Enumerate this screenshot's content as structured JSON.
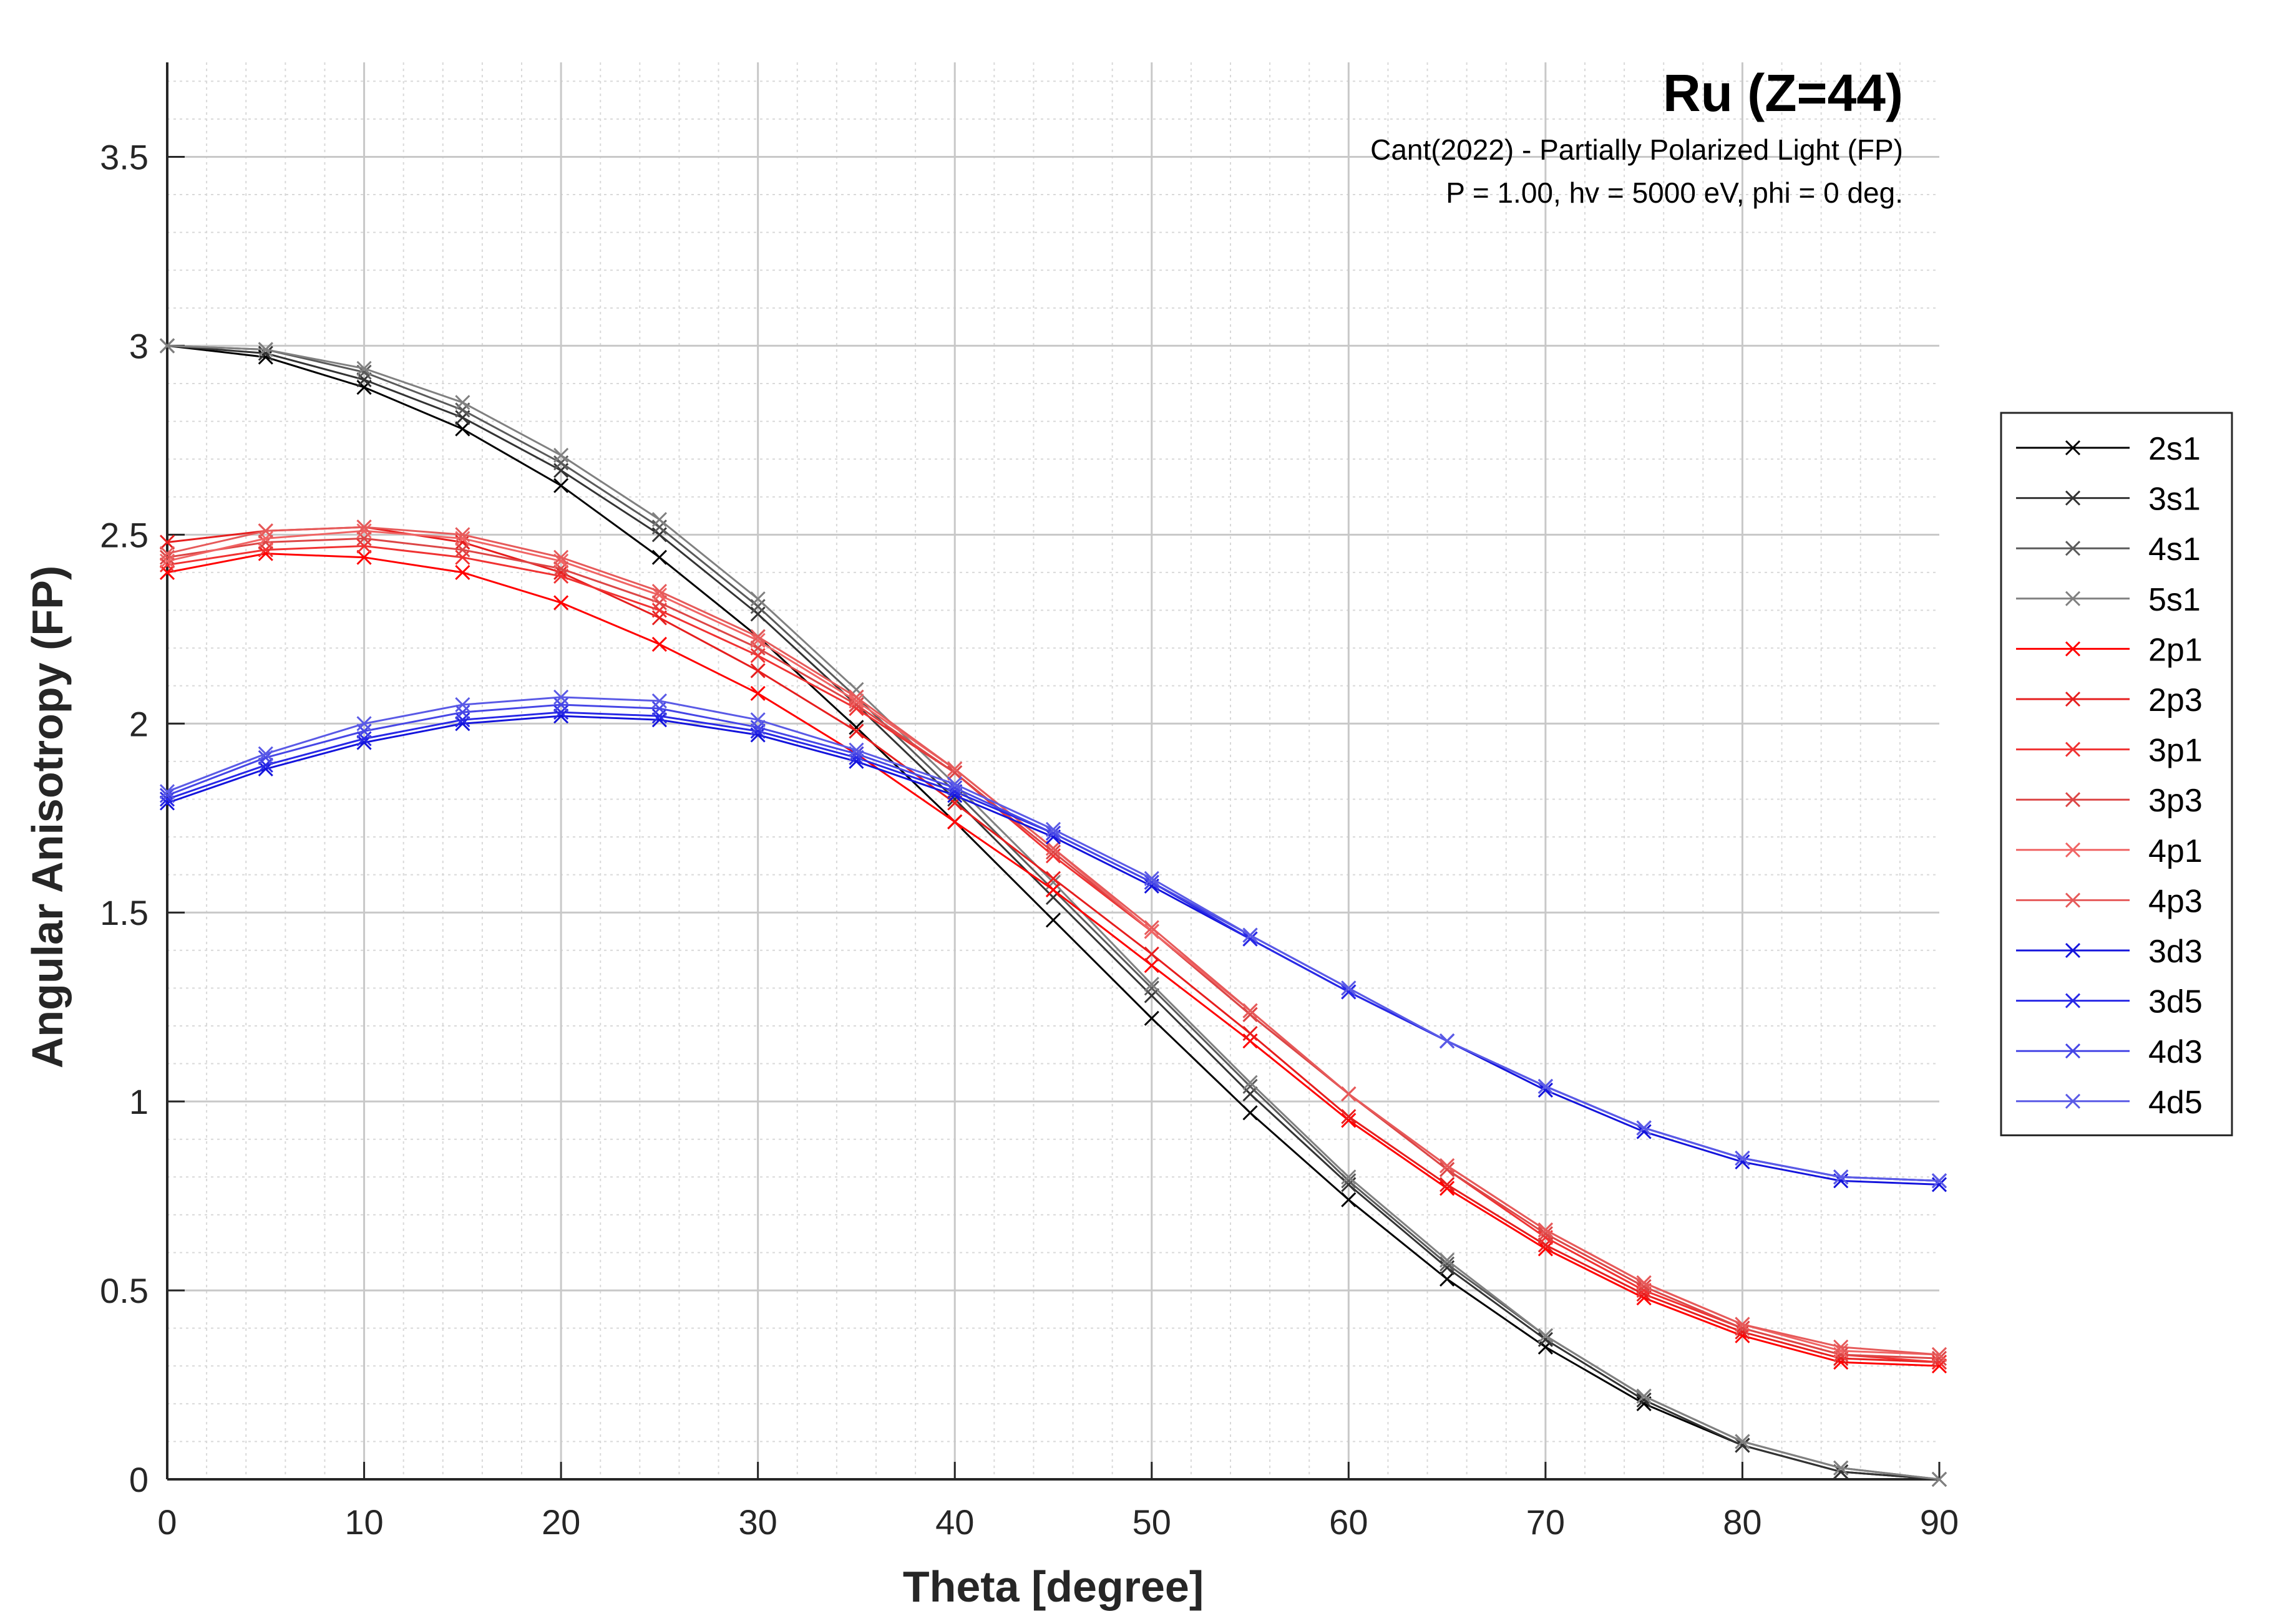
{
  "chart_data": {
    "type": "line",
    "title": "Ru (Z=44)",
    "subtitle_lines": [
      "Cant(2022) - Partially Polarized Light (FP)",
      "P = 1.00, hv = 5000 eV, phi = 0 deg."
    ],
    "xlabel": "Theta [degree]",
    "ylabel": "Angular Anisotropy (FP)",
    "xlim": [
      0,
      90
    ],
    "ylim": [
      0,
      3.75
    ],
    "xticks": [
      0,
      10,
      20,
      30,
      40,
      50,
      60,
      70,
      80,
      90
    ],
    "yticks": [
      0,
      0.5,
      1,
      1.5,
      2,
      2.5,
      3,
      3.5
    ],
    "xtick_labels": [
      "0",
      "10",
      "20",
      "30",
      "40",
      "50",
      "60",
      "70",
      "80",
      "90"
    ],
    "ytick_labels": [
      "0",
      "0.5",
      "1",
      "1.5",
      "2",
      "2.5",
      "3",
      "3.5"
    ],
    "grid": true,
    "minor_grid": true,
    "legend_position": "outside-right",
    "marker": "x",
    "x": [
      0,
      5,
      10,
      15,
      20,
      25,
      30,
      35,
      40,
      45,
      50,
      55,
      60,
      65,
      70,
      75,
      80,
      85,
      90
    ],
    "series": [
      {
        "name": "2s1",
        "color": "#000000",
        "values": [
          3.0,
          2.97,
          2.89,
          2.78,
          2.63,
          2.44,
          2.23,
          1.99,
          1.74,
          1.48,
          1.22,
          0.97,
          0.74,
          0.53,
          0.35,
          0.2,
          0.09,
          0.02,
          0.0
        ]
      },
      {
        "name": "3s1",
        "color": "#333333",
        "values": [
          3.0,
          2.98,
          2.91,
          2.81,
          2.67,
          2.5,
          2.29,
          2.05,
          1.8,
          1.54,
          1.28,
          1.02,
          0.78,
          0.56,
          0.37,
          0.21,
          0.09,
          0.02,
          0.0
        ]
      },
      {
        "name": "4s1",
        "color": "#5a5a5a",
        "values": [
          3.0,
          2.99,
          2.93,
          2.83,
          2.69,
          2.52,
          2.31,
          2.07,
          1.82,
          1.56,
          1.3,
          1.04,
          0.79,
          0.57,
          0.38,
          0.22,
          0.1,
          0.03,
          0.0
        ]
      },
      {
        "name": "5s1",
        "color": "#808080",
        "values": [
          3.0,
          2.99,
          2.94,
          2.85,
          2.71,
          2.54,
          2.33,
          2.09,
          1.84,
          1.58,
          1.31,
          1.05,
          0.8,
          0.58,
          0.38,
          0.22,
          0.1,
          0.03,
          0.0
        ]
      },
      {
        "name": "2p1",
        "color": "#ff0000",
        "values": [
          2.4,
          2.45,
          2.44,
          2.4,
          2.32,
          2.21,
          2.08,
          1.92,
          1.74,
          1.56,
          1.36,
          1.16,
          0.95,
          0.77,
          0.61,
          0.48,
          0.38,
          0.31,
          0.3
        ]
      },
      {
        "name": "2p3",
        "color": "#e61e1e",
        "values": [
          2.48,
          2.51,
          2.52,
          2.48,
          2.4,
          2.28,
          2.14,
          1.98,
          1.79,
          1.59,
          1.39,
          1.18,
          0.96,
          0.78,
          0.62,
          0.49,
          0.39,
          0.32,
          0.31
        ]
      },
      {
        "name": "3p1",
        "color": "#f03232",
        "values": [
          2.42,
          2.46,
          2.47,
          2.44,
          2.39,
          2.3,
          2.18,
          2.04,
          1.87,
          1.65,
          1.45,
          1.23,
          1.02,
          0.82,
          0.64,
          0.5,
          0.4,
          0.33,
          0.31
        ]
      },
      {
        "name": "3p3",
        "color": "#dc4646",
        "values": [
          2.44,
          2.48,
          2.49,
          2.46,
          2.41,
          2.32,
          2.2,
          2.05,
          1.87,
          1.66,
          1.45,
          1.23,
          1.02,
          0.82,
          0.65,
          0.51,
          0.4,
          0.33,
          0.32
        ]
      },
      {
        "name": "4p1",
        "color": "#f06464",
        "values": [
          2.43,
          2.49,
          2.51,
          2.49,
          2.43,
          2.34,
          2.22,
          2.06,
          1.88,
          1.67,
          1.45,
          1.24,
          1.02,
          0.83,
          0.66,
          0.52,
          0.41,
          0.34,
          0.33
        ]
      },
      {
        "name": "4p3",
        "color": "#e65a5a",
        "values": [
          2.45,
          2.51,
          2.52,
          2.5,
          2.44,
          2.35,
          2.23,
          2.07,
          1.88,
          1.67,
          1.46,
          1.24,
          1.02,
          0.83,
          0.66,
          0.52,
          0.41,
          0.35,
          0.33
        ]
      },
      {
        "name": "3d3",
        "color": "#1414dc",
        "values": [
          1.79,
          1.88,
          1.95,
          2.0,
          2.02,
          2.01,
          1.97,
          1.9,
          1.81,
          1.7,
          1.57,
          1.43,
          1.29,
          1.16,
          1.03,
          0.92,
          0.84,
          0.79,
          0.78
        ]
      },
      {
        "name": "3d5",
        "color": "#2828e6",
        "values": [
          1.8,
          1.89,
          1.96,
          2.01,
          2.03,
          2.02,
          1.98,
          1.91,
          1.82,
          1.71,
          1.58,
          1.43,
          1.29,
          1.16,
          1.04,
          0.93,
          0.85,
          0.8,
          0.79
        ]
      },
      {
        "name": "4d3",
        "color": "#4646e6",
        "values": [
          1.81,
          1.91,
          1.98,
          2.03,
          2.05,
          2.04,
          1.99,
          1.92,
          1.83,
          1.71,
          1.58,
          1.44,
          1.3,
          1.16,
          1.04,
          0.93,
          0.85,
          0.8,
          0.79
        ]
      },
      {
        "name": "4d5",
        "color": "#5a5ae6",
        "values": [
          1.82,
          1.92,
          2.0,
          2.05,
          2.07,
          2.06,
          2.01,
          1.93,
          1.84,
          1.72,
          1.59,
          1.44,
          1.3,
          1.16,
          1.04,
          0.93,
          0.85,
          0.8,
          0.79
        ]
      }
    ]
  }
}
